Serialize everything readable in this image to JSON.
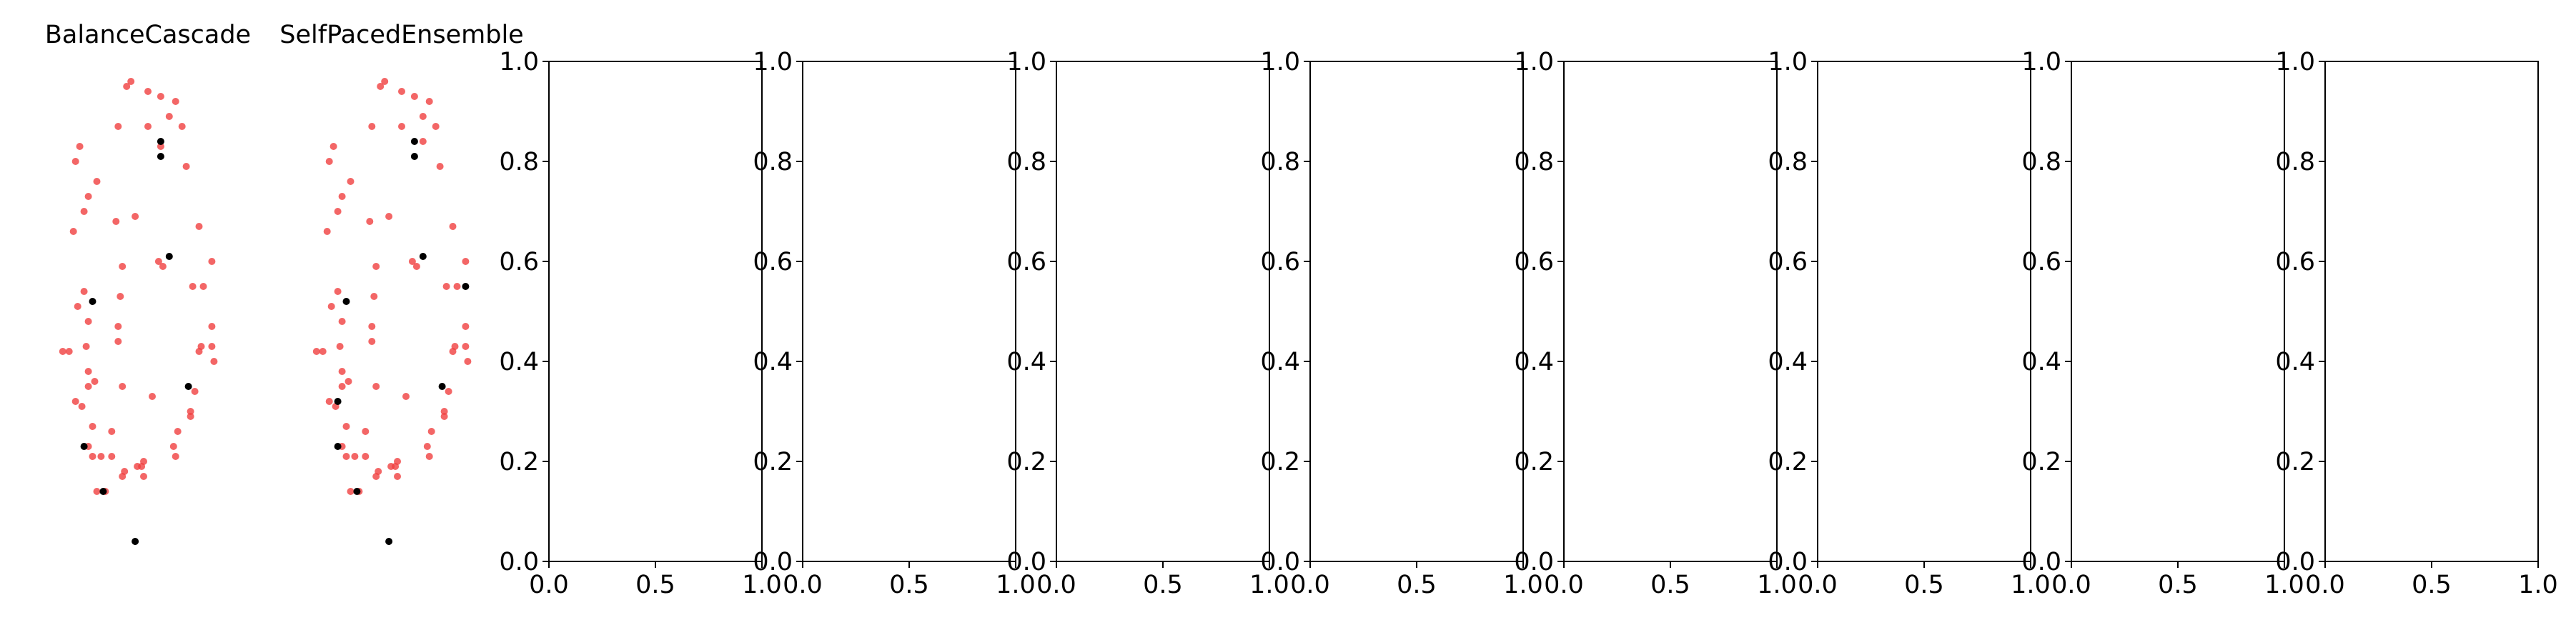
{
  "chart_data": [
    {
      "type": "scatter",
      "title": "BalanceCascade",
      "axis": "off",
      "series": [
        {
          "color": "#f04040",
          "points": [
            [
              0.4,
              0.95
            ],
            [
              0.42,
              0.96
            ],
            [
              0.5,
              0.94
            ],
            [
              0.56,
              0.93
            ],
            [
              0.63,
              0.92
            ],
            [
              0.6,
              0.89
            ],
            [
              0.5,
              0.87
            ],
            [
              0.66,
              0.87
            ],
            [
              0.36,
              0.87
            ],
            [
              0.18,
              0.83
            ],
            [
              0.16,
              0.8
            ],
            [
              0.56,
              0.83
            ],
            [
              0.68,
              0.79
            ],
            [
              0.26,
              0.76
            ],
            [
              0.22,
              0.73
            ],
            [
              0.2,
              0.7
            ],
            [
              0.15,
              0.66
            ],
            [
              0.35,
              0.68
            ],
            [
              0.44,
              0.69
            ],
            [
              0.74,
              0.67
            ],
            [
              0.55,
              0.6
            ],
            [
              0.57,
              0.59
            ],
            [
              0.38,
              0.59
            ],
            [
              0.8,
              0.6
            ],
            [
              0.76,
              0.55
            ],
            [
              0.71,
              0.55
            ],
            [
              0.37,
              0.53
            ],
            [
              0.2,
              0.54
            ],
            [
              0.17,
              0.51
            ],
            [
              0.22,
              0.48
            ],
            [
              0.36,
              0.47
            ],
            [
              0.8,
              0.47
            ],
            [
              0.36,
              0.44
            ],
            [
              0.75,
              0.43
            ],
            [
              0.21,
              0.43
            ],
            [
              0.13,
              0.42
            ],
            [
              0.1,
              0.42
            ],
            [
              0.8,
              0.43
            ],
            [
              0.74,
              0.42
            ],
            [
              0.81,
              0.4
            ],
            [
              0.22,
              0.38
            ],
            [
              0.22,
              0.35
            ],
            [
              0.25,
              0.36
            ],
            [
              0.38,
              0.35
            ],
            [
              0.72,
              0.34
            ],
            [
              0.16,
              0.32
            ],
            [
              0.19,
              0.31
            ],
            [
              0.52,
              0.33
            ],
            [
              0.7,
              0.3
            ],
            [
              0.7,
              0.29
            ],
            [
              0.24,
              0.27
            ],
            [
              0.33,
              0.26
            ],
            [
              0.64,
              0.26
            ],
            [
              0.22,
              0.23
            ],
            [
              0.62,
              0.23
            ],
            [
              0.24,
              0.21
            ],
            [
              0.28,
              0.21
            ],
            [
              0.33,
              0.21
            ],
            [
              0.48,
              0.2
            ],
            [
              0.63,
              0.21
            ],
            [
              0.47,
              0.19
            ],
            [
              0.45,
              0.19
            ],
            [
              0.39,
              0.18
            ],
            [
              0.38,
              0.17
            ],
            [
              0.48,
              0.17
            ],
            [
              0.26,
              0.14
            ],
            [
              0.3,
              0.14
            ]
          ]
        },
        {
          "color": "#000000",
          "points": [
            [
              0.56,
              0.84
            ],
            [
              0.56,
              0.81
            ],
            [
              0.6,
              0.61
            ],
            [
              0.24,
              0.52
            ],
            [
              0.69,
              0.35
            ],
            [
              0.2,
              0.23
            ],
            [
              0.29,
              0.14
            ],
            [
              0.44,
              0.04
            ]
          ]
        }
      ]
    },
    {
      "type": "scatter",
      "title": "SelfPacedEnsemble",
      "axis": "off",
      "series": [
        {
          "color": "#f04040",
          "points": [
            [
              0.4,
              0.95
            ],
            [
              0.42,
              0.96
            ],
            [
              0.5,
              0.94
            ],
            [
              0.56,
              0.93
            ],
            [
              0.63,
              0.92
            ],
            [
              0.6,
              0.89
            ],
            [
              0.5,
              0.87
            ],
            [
              0.66,
              0.87
            ],
            [
              0.36,
              0.87
            ],
            [
              0.18,
              0.83
            ],
            [
              0.16,
              0.8
            ],
            [
              0.6,
              0.84
            ],
            [
              0.68,
              0.79
            ],
            [
              0.26,
              0.76
            ],
            [
              0.22,
              0.73
            ],
            [
              0.2,
              0.7
            ],
            [
              0.15,
              0.66
            ],
            [
              0.35,
              0.68
            ],
            [
              0.44,
              0.69
            ],
            [
              0.74,
              0.67
            ],
            [
              0.55,
              0.6
            ],
            [
              0.57,
              0.59
            ],
            [
              0.38,
              0.59
            ],
            [
              0.8,
              0.6
            ],
            [
              0.76,
              0.55
            ],
            [
              0.71,
              0.55
            ],
            [
              0.37,
              0.53
            ],
            [
              0.2,
              0.54
            ],
            [
              0.17,
              0.51
            ],
            [
              0.22,
              0.48
            ],
            [
              0.36,
              0.47
            ],
            [
              0.8,
              0.47
            ],
            [
              0.36,
              0.44
            ],
            [
              0.75,
              0.43
            ],
            [
              0.21,
              0.43
            ],
            [
              0.13,
              0.42
            ],
            [
              0.1,
              0.42
            ],
            [
              0.8,
              0.43
            ],
            [
              0.74,
              0.42
            ],
            [
              0.81,
              0.4
            ],
            [
              0.22,
              0.38
            ],
            [
              0.22,
              0.35
            ],
            [
              0.25,
              0.36
            ],
            [
              0.38,
              0.35
            ],
            [
              0.72,
              0.34
            ],
            [
              0.16,
              0.32
            ],
            [
              0.19,
              0.31
            ],
            [
              0.52,
              0.33
            ],
            [
              0.7,
              0.3
            ],
            [
              0.7,
              0.29
            ],
            [
              0.24,
              0.27
            ],
            [
              0.33,
              0.26
            ],
            [
              0.64,
              0.26
            ],
            [
              0.22,
              0.23
            ],
            [
              0.62,
              0.23
            ],
            [
              0.24,
              0.21
            ],
            [
              0.28,
              0.21
            ],
            [
              0.33,
              0.21
            ],
            [
              0.48,
              0.2
            ],
            [
              0.63,
              0.21
            ],
            [
              0.47,
              0.19
            ],
            [
              0.45,
              0.19
            ],
            [
              0.39,
              0.18
            ],
            [
              0.38,
              0.17
            ],
            [
              0.48,
              0.17
            ],
            [
              0.26,
              0.14
            ],
            [
              0.3,
              0.14
            ]
          ]
        },
        {
          "color": "#000000",
          "points": [
            [
              0.56,
              0.84
            ],
            [
              0.56,
              0.81
            ],
            [
              0.6,
              0.61
            ],
            [
              0.8,
              0.55
            ],
            [
              0.24,
              0.52
            ],
            [
              0.69,
              0.35
            ],
            [
              0.2,
              0.32
            ],
            [
              0.2,
              0.23
            ],
            [
              0.29,
              0.14
            ],
            [
              0.44,
              0.04
            ]
          ]
        }
      ]
    },
    {
      "type": "scatter",
      "title": "",
      "xlim": [
        0,
        1
      ],
      "ylim": [
        0,
        1
      ],
      "xticks": [
        "0.0",
        "0.5",
        "1.0"
      ],
      "yticks": [
        "0.0",
        "0.2",
        "0.4",
        "0.6",
        "0.8",
        "1.0"
      ],
      "series": []
    },
    {
      "type": "scatter",
      "title": "",
      "xlim": [
        0,
        1
      ],
      "ylim": [
        0,
        1
      ],
      "xticks": [
        "0.0",
        "0.5",
        "1.0"
      ],
      "yticks": [
        "0.0",
        "0.2",
        "0.4",
        "0.6",
        "0.8",
        "1.0"
      ],
      "series": []
    },
    {
      "type": "scatter",
      "title": "",
      "xlim": [
        0,
        1
      ],
      "ylim": [
        0,
        1
      ],
      "xticks": [
        "0.0",
        "0.5",
        "1.0"
      ],
      "yticks": [
        "0.0",
        "0.2",
        "0.4",
        "0.6",
        "0.8",
        "1.0"
      ],
      "series": []
    },
    {
      "type": "scatter",
      "title": "",
      "xlim": [
        0,
        1
      ],
      "ylim": [
        0,
        1
      ],
      "xticks": [
        "0.0",
        "0.5",
        "1.0"
      ],
      "yticks": [
        "0.0",
        "0.2",
        "0.4",
        "0.6",
        "0.8",
        "1.0"
      ],
      "series": []
    },
    {
      "type": "scatter",
      "title": "",
      "xlim": [
        0,
        1
      ],
      "ylim": [
        0,
        1
      ],
      "xticks": [
        "0.0",
        "0.5",
        "1.0"
      ],
      "yticks": [
        "0.0",
        "0.2",
        "0.4",
        "0.6",
        "0.8",
        "1.0"
      ],
      "series": []
    },
    {
      "type": "scatter",
      "title": "",
      "xlim": [
        0,
        1
      ],
      "ylim": [
        0,
        1
      ],
      "xticks": [
        "0.0",
        "0.5",
        "1.0"
      ],
      "yticks": [
        "0.0",
        "0.2",
        "0.4",
        "0.6",
        "0.8",
        "1.0"
      ],
      "series": []
    },
    {
      "type": "scatter",
      "title": "",
      "xlim": [
        0,
        1
      ],
      "ylim": [
        0,
        1
      ],
      "xticks": [
        "0.0",
        "0.5",
        "1.0"
      ],
      "yticks": [
        "0.0",
        "0.2",
        "0.4",
        "0.6",
        "0.8",
        "1.0"
      ],
      "series": []
    },
    {
      "type": "scatter",
      "title": "",
      "xlim": [
        0,
        1
      ],
      "ylim": [
        0,
        1
      ],
      "xticks": [
        "0.0",
        "0.5",
        "1.0"
      ],
      "yticks": [
        "0.0",
        "0.2",
        "0.4",
        "0.6",
        "0.8",
        "1.0"
      ],
      "series": []
    }
  ]
}
